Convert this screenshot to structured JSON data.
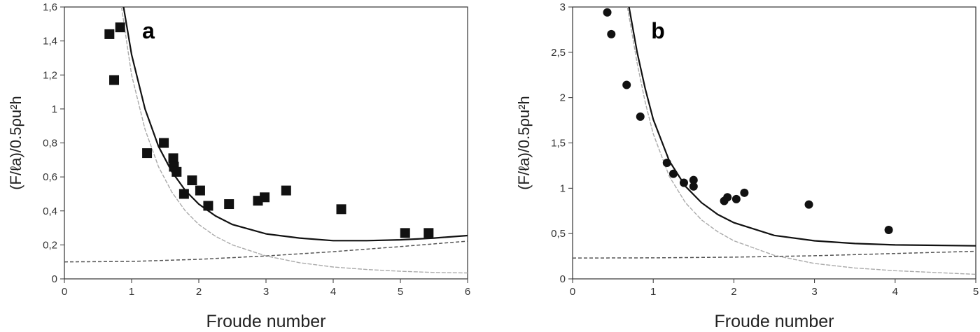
{
  "chart_data": [
    {
      "type": "scatter",
      "panel_label": "a",
      "xlabel": "Froude number",
      "ylabel": "(F/ℓa)/0.5ρu²h",
      "xlim": [
        0,
        6
      ],
      "ylim": [
        0,
        1.6
      ],
      "xticks": [
        0,
        1,
        2,
        3,
        4,
        5,
        6
      ],
      "xtick_labels": [
        "0",
        "1",
        "2",
        "3",
        "4",
        "5",
        "6"
      ],
      "yticks": [
        0,
        0.2,
        0.4,
        0.6,
        0.8,
        1.0,
        1.2,
        1.4,
        1.6
      ],
      "ytick_labels": [
        "0",
        "0,2",
        "0,4",
        "0,6",
        "0,8",
        "1",
        "1,2",
        "1,4",
        "1,6"
      ],
      "marker": "square",
      "points": [
        [
          0.67,
          1.44
        ],
        [
          0.74,
          1.17
        ],
        [
          0.83,
          1.48
        ],
        [
          1.23,
          0.74
        ],
        [
          1.48,
          0.8
        ],
        [
          1.62,
          0.71
        ],
        [
          1.63,
          0.66
        ],
        [
          1.67,
          0.63
        ],
        [
          1.78,
          0.5
        ],
        [
          1.9,
          0.58
        ],
        [
          2.02,
          0.52
        ],
        [
          2.14,
          0.43
        ],
        [
          2.45,
          0.44
        ],
        [
          2.88,
          0.46
        ],
        [
          2.98,
          0.48
        ],
        [
          3.3,
          0.52
        ],
        [
          4.12,
          0.41
        ],
        [
          5.07,
          0.27
        ],
        [
          5.42,
          0.27
        ]
      ],
      "lines": [
        {
          "style": "solid-black",
          "points": [
            [
              0.88,
              1.6
            ],
            [
              1.0,
              1.32
            ],
            [
              1.2,
              1.0
            ],
            [
              1.4,
              0.78
            ],
            [
              1.6,
              0.63
            ],
            [
              1.8,
              0.52
            ],
            [
              2.0,
              0.44
            ],
            [
              2.25,
              0.37
            ],
            [
              2.5,
              0.32
            ],
            [
              3.0,
              0.265
            ],
            [
              3.5,
              0.24
            ],
            [
              4.0,
              0.225
            ],
            [
              4.5,
              0.225
            ],
            [
              5.0,
              0.23
            ],
            [
              5.5,
              0.24
            ],
            [
              6.0,
              0.255
            ]
          ]
        },
        {
          "style": "solid-gray",
          "points": [
            [
              0.85,
              1.6
            ],
            [
              1.0,
              1.2
            ],
            [
              1.2,
              0.88
            ],
            [
              1.4,
              0.66
            ],
            [
              1.6,
              0.51
            ],
            [
              1.8,
              0.4
            ],
            [
              2.0,
              0.32
            ],
            [
              2.25,
              0.25
            ],
            [
              2.5,
              0.2
            ],
            [
              3.0,
              0.135
            ],
            [
              3.5,
              0.095
            ],
            [
              4.0,
              0.07
            ],
            [
              4.5,
              0.055
            ],
            [
              5.0,
              0.045
            ],
            [
              5.5,
              0.038
            ],
            [
              6.0,
              0.035
            ]
          ]
        },
        {
          "style": "dashed-dark",
          "points": [
            [
              0,
              0.1
            ],
            [
              1,
              0.103
            ],
            [
              2,
              0.115
            ],
            [
              3,
              0.135
            ],
            [
              4,
              0.16
            ],
            [
              5,
              0.19
            ],
            [
              6,
              0.222
            ]
          ]
        }
      ]
    },
    {
      "type": "scatter",
      "panel_label": "b",
      "xlabel": "Froude number",
      "ylabel": "(F/ℓa)/0.5ρu²h",
      "xlim": [
        0,
        5
      ],
      "ylim": [
        0,
        3
      ],
      "xticks": [
        0,
        1,
        2,
        3,
        4,
        5
      ],
      "xtick_labels": [
        "0",
        "1",
        "2",
        "3",
        "4",
        "5"
      ],
      "yticks": [
        0,
        0.5,
        1.0,
        1.5,
        2.0,
        2.5,
        3.0
      ],
      "ytick_labels": [
        "0",
        "0,5",
        "1",
        "1,5",
        "2",
        "2,5",
        "3"
      ],
      "marker": "circle",
      "points": [
        [
          0.43,
          2.94
        ],
        [
          0.48,
          2.7
        ],
        [
          0.67,
          2.14
        ],
        [
          0.84,
          1.79
        ],
        [
          1.17,
          1.28
        ],
        [
          1.25,
          1.16
        ],
        [
          1.38,
          1.06
        ],
        [
          1.5,
          1.09
        ],
        [
          1.5,
          1.02
        ],
        [
          1.88,
          0.86
        ],
        [
          1.92,
          0.9
        ],
        [
          2.03,
          0.88
        ],
        [
          2.13,
          0.95
        ],
        [
          2.93,
          0.82
        ],
        [
          3.92,
          0.54
        ]
      ],
      "lines": [
        {
          "style": "solid-black",
          "points": [
            [
              0.7,
              3.0
            ],
            [
              0.8,
              2.5
            ],
            [
              0.9,
              2.1
            ],
            [
              1.0,
              1.76
            ],
            [
              1.2,
              1.3
            ],
            [
              1.4,
              1.02
            ],
            [
              1.6,
              0.84
            ],
            [
              1.8,
              0.71
            ],
            [
              2.0,
              0.62
            ],
            [
              2.5,
              0.48
            ],
            [
              3.0,
              0.42
            ],
            [
              3.5,
              0.39
            ],
            [
              4.0,
              0.375
            ],
            [
              4.5,
              0.37
            ],
            [
              5.0,
              0.365
            ]
          ]
        },
        {
          "style": "solid-gray",
          "points": [
            [
              0.68,
              3.0
            ],
            [
              0.8,
              2.38
            ],
            [
              0.9,
              1.95
            ],
            [
              1.0,
              1.6
            ],
            [
              1.2,
              1.13
            ],
            [
              1.4,
              0.84
            ],
            [
              1.6,
              0.65
            ],
            [
              1.8,
              0.52
            ],
            [
              2.0,
              0.42
            ],
            [
              2.5,
              0.26
            ],
            [
              3.0,
              0.17
            ],
            [
              3.5,
              0.12
            ],
            [
              4.0,
              0.09
            ],
            [
              4.5,
              0.07
            ],
            [
              5.0,
              0.05
            ]
          ]
        },
        {
          "style": "dashed-dark",
          "points": [
            [
              0,
              0.23
            ],
            [
              1,
              0.232
            ],
            [
              2,
              0.24
            ],
            [
              3,
              0.255
            ],
            [
              4,
              0.28
            ],
            [
              5,
              0.305
            ]
          ]
        }
      ]
    }
  ]
}
